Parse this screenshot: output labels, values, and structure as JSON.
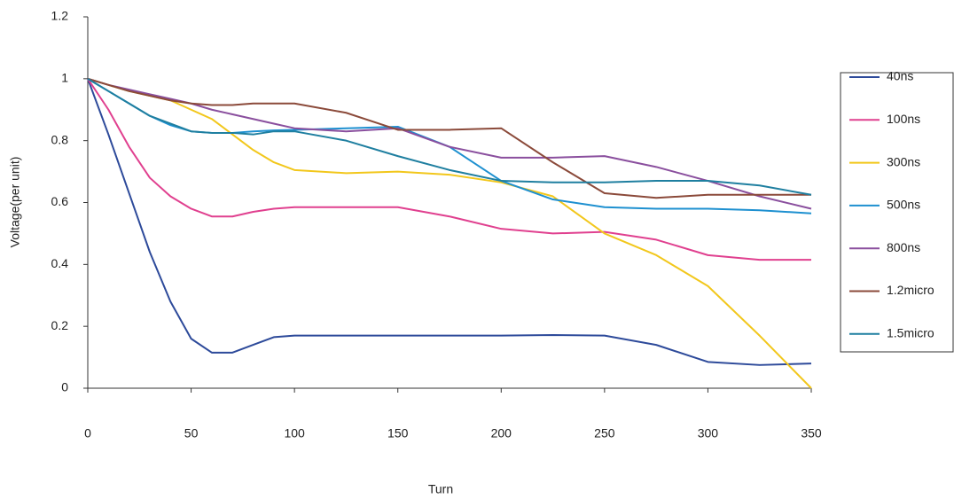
{
  "chart_data": {
    "type": "line",
    "x_label": "Turn",
    "y_label": "Voltage(per unit)",
    "x": [
      0,
      10,
      20,
      30,
      40,
      50,
      60,
      70,
      80,
      90,
      100,
      125,
      150,
      175,
      200,
      225,
      250,
      275,
      300,
      325,
      350
    ],
    "series": [
      {
        "name": "40ns",
        "color": "#2d4a9a",
        "values": [
          1,
          0.82,
          0.63,
          0.44,
          0.28,
          0.16,
          0.115,
          0.115,
          0.14,
          0.165,
          0.17,
          0.17,
          0.17,
          0.17,
          0.17,
          0.172,
          0.17,
          0.14,
          0.085,
          0.075,
          0.08
        ]
      },
      {
        "name": "100ns",
        "color": "#e0408f",
        "values": [
          1,
          0.9,
          0.78,
          0.68,
          0.62,
          0.58,
          0.555,
          0.555,
          0.57,
          0.58,
          0.585,
          0.585,
          0.585,
          0.555,
          0.515,
          0.5,
          0.505,
          0.48,
          0.43,
          0.415,
          0.415
        ]
      },
      {
        "name": "300ns",
        "color": "#f2c71c",
        "values": [
          1,
          0.98,
          0.96,
          0.945,
          0.93,
          0.9,
          0.87,
          0.82,
          0.77,
          0.73,
          0.705,
          0.695,
          0.7,
          0.69,
          0.665,
          0.62,
          0.5,
          0.43,
          0.33,
          0.17,
          0.0
        ]
      },
      {
        "name": "500ns",
        "color": "#1e90d0",
        "values": [
          1,
          0.96,
          0.92,
          0.88,
          0.85,
          0.83,
          0.825,
          0.825,
          0.83,
          0.833,
          0.835,
          0.84,
          0.845,
          0.78,
          0.67,
          0.61,
          0.585,
          0.58,
          0.58,
          0.575,
          0.565
        ]
      },
      {
        "name": "800ns",
        "color": "#8a4f9e",
        "values": [
          1,
          0.98,
          0.965,
          0.95,
          0.935,
          0.92,
          0.9,
          0.885,
          0.87,
          0.855,
          0.84,
          0.83,
          0.84,
          0.78,
          0.745,
          0.745,
          0.75,
          0.715,
          0.67,
          0.62,
          0.58
        ]
      },
      {
        "name": "1.2micro",
        "color": "#8b4a3a",
        "values": [
          1,
          0.98,
          0.96,
          0.945,
          0.93,
          0.92,
          0.915,
          0.915,
          0.92,
          0.92,
          0.92,
          0.89,
          0.835,
          0.835,
          0.84,
          0.73,
          0.63,
          0.615,
          0.625,
          0.625,
          0.625
        ]
      },
      {
        "name": "1.5micro",
        "color": "#1f7fa0",
        "values": [
          1,
          0.96,
          0.92,
          0.88,
          0.855,
          0.83,
          0.825,
          0.825,
          0.82,
          0.83,
          0.83,
          0.8,
          0.75,
          0.705,
          0.67,
          0.665,
          0.665,
          0.67,
          0.67,
          0.655,
          0.625
        ]
      }
    ],
    "xlim": [
      0,
      350
    ],
    "xticks": [
      0,
      50,
      100,
      150,
      200,
      250,
      300,
      350
    ],
    "ylim": [
      0,
      1.2
    ],
    "yticks": [
      0,
      0.2,
      0.4,
      0.6,
      0.8,
      1,
      1.2
    ],
    "legend": "right"
  }
}
